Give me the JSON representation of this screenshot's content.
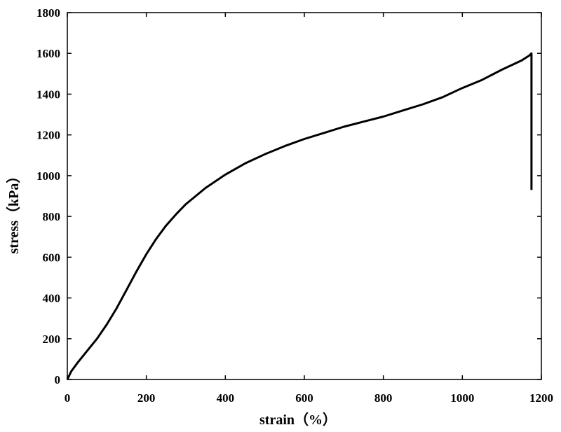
{
  "chart_data": {
    "type": "line",
    "xlabel": "strain（%）",
    "ylabel": "stress（kPa）",
    "xlim": [
      0,
      1200
    ],
    "ylim": [
      0,
      1800
    ],
    "x_ticks": [
      0,
      200,
      400,
      600,
      800,
      1000,
      1200
    ],
    "y_ticks": [
      0,
      200,
      400,
      600,
      800,
      1000,
      1200,
      1400,
      1600,
      1800
    ],
    "grid": false,
    "legend": "none",
    "series": [
      {
        "color": "#000000",
        "x": [
          0,
          10,
          25,
          50,
          75,
          100,
          125,
          150,
          175,
          200,
          225,
          250,
          275,
          300,
          350,
          400,
          450,
          500,
          550,
          600,
          650,
          700,
          750,
          800,
          850,
          900,
          950,
          1000,
          1050,
          1100,
          1150,
          1170,
          1175,
          1175
        ],
        "y": [
          0,
          40,
          80,
          140,
          200,
          270,
          350,
          440,
          530,
          615,
          690,
          755,
          810,
          860,
          940,
          1005,
          1060,
          1105,
          1145,
          1180,
          1210,
          1240,
          1265,
          1290,
          1320,
          1350,
          1385,
          1430,
          1470,
          1520,
          1565,
          1590,
          1600,
          930
        ]
      }
    ]
  }
}
